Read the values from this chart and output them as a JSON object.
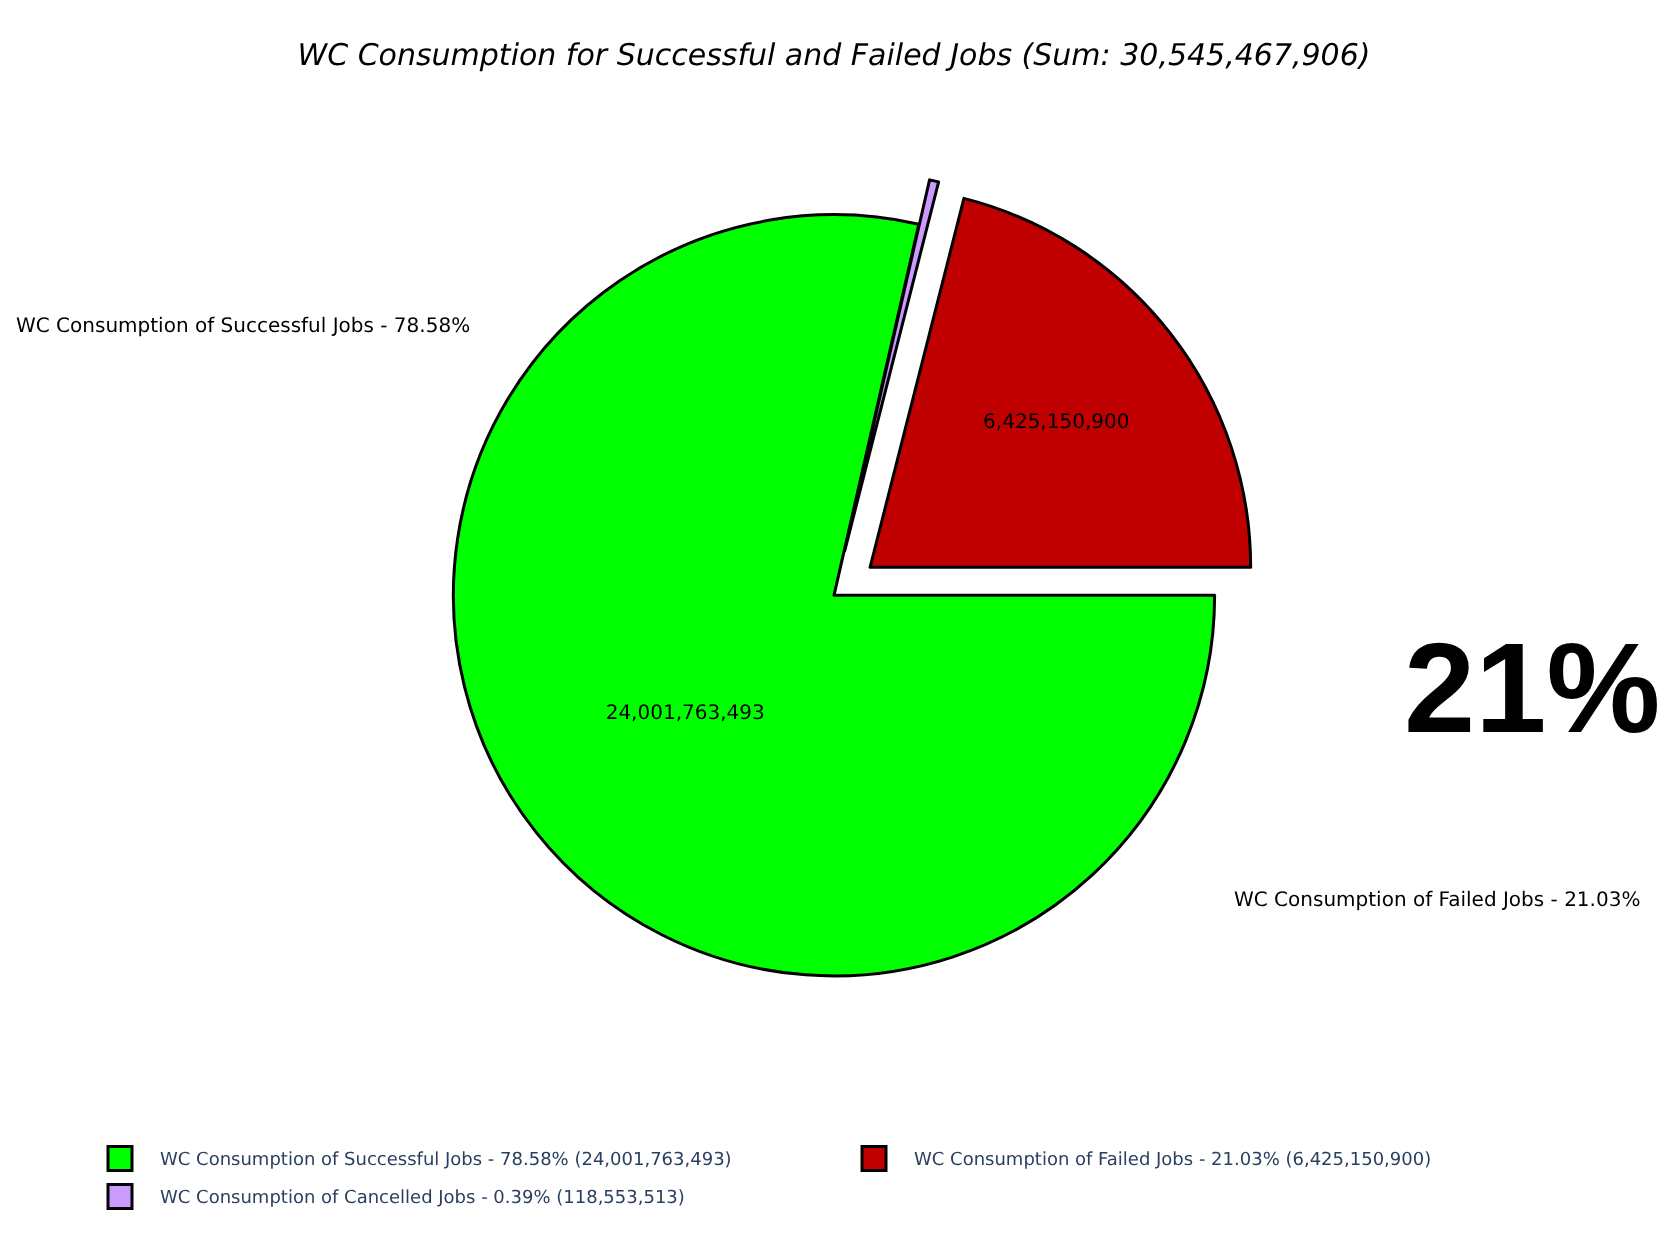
{
  "chart_data": {
    "type": "pie",
    "title": "WC Consumption for Successful and Failed Jobs (Sum: 30,545,467,906)",
    "categories": [
      "WC Consumption of Successful Jobs - 78.58% (24,001,763,493)",
      "WC Consumption of Failed Jobs - 21.03% (6,425,150,900)",
      "WC Consumption of Cancelled Jobs - 0.39% (118,553,513)"
    ],
    "values": [
      24001763493,
      6425150900,
      118553513
    ],
    "value_labels": [
      "24,001,763,493",
      "6,425,150,900",
      null
    ],
    "colors": [
      "#00ff00",
      "#c00000",
      "#cc99ff"
    ],
    "annotations": [
      "WC Consumption of Successful Jobs - 78.58%",
      "WC Consumption of Failed Jobs - 21.03%",
      "21%"
    ],
    "legend": "bottom"
  }
}
